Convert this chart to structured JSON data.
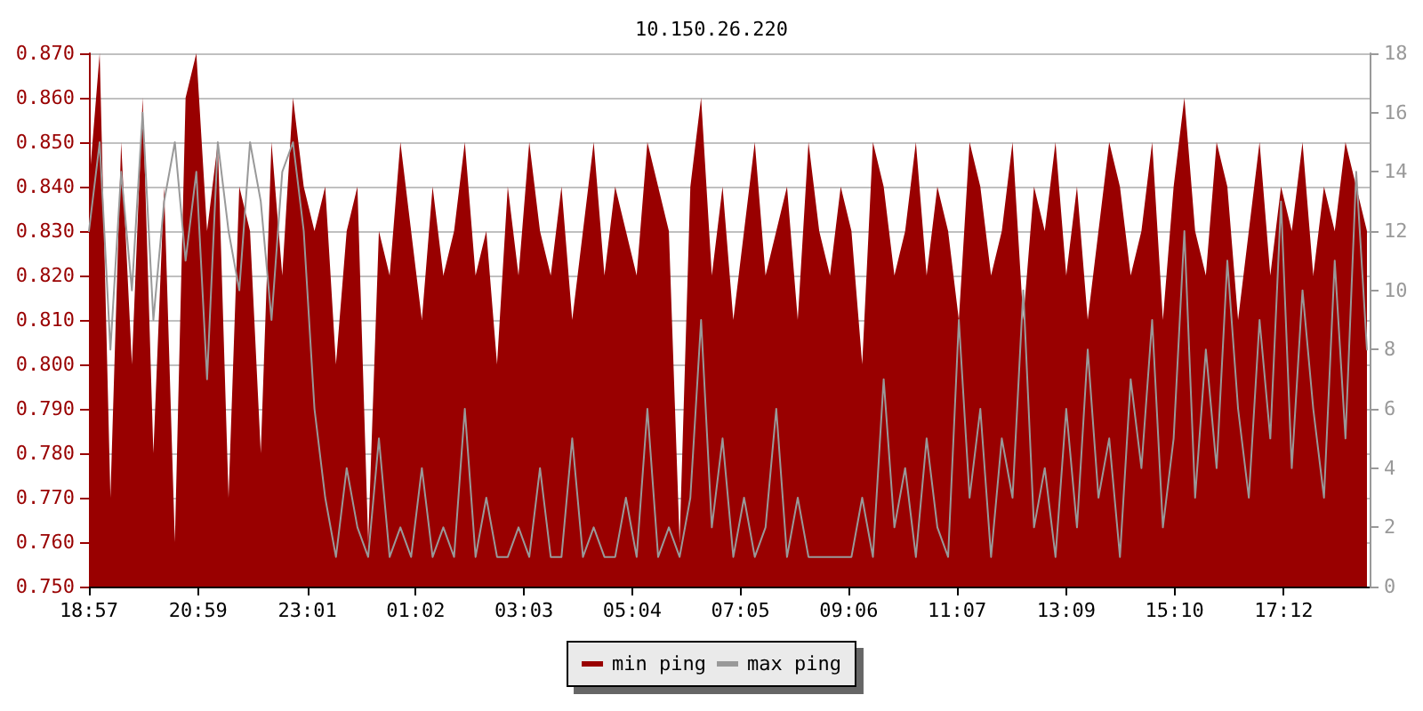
{
  "chart_data": {
    "type": "area",
    "title": "10.150.26.220",
    "legend": "bottom",
    "grid": "y",
    "marker": "none",
    "x": [
      "--01-01T18:57",
      "--01-01T19:09",
      "--01-01T19:21",
      "--01-01T19:33",
      "--01-01T19:45",
      "--01-01T19:57",
      "--01-01T20:09",
      "--01-01T20:21",
      "--01-01T20:33",
      "--01-01T20:45",
      "--01-01T20:57",
      "--01-01T21:09",
      "--01-01T21:21",
      "--01-01T21:33",
      "--01-01T21:45",
      "--01-01T21:57",
      "--01-01T22:09",
      "--01-01T22:21",
      "--01-01T22:33",
      "--01-01T22:45",
      "--01-01T22:57",
      "--01-01T23:09",
      "--01-01T23:21",
      "--01-01T23:33",
      "--01-01T23:45",
      "--01-01T23:57",
      "--01-02T00:09",
      "--01-02T00:21",
      "--01-02T00:33",
      "--01-02T00:45",
      "--01-02T00:57",
      "--01-02T01:09",
      "--01-02T01:21",
      "--01-02T01:33",
      "--01-02T01:45",
      "--01-02T01:57",
      "--01-02T02:09",
      "--01-02T02:21",
      "--01-02T02:33",
      "--01-02T02:45",
      "--01-02T02:57",
      "--01-02T03:09",
      "--01-02T03:21",
      "--01-02T03:33",
      "--01-02T03:45",
      "--01-02T03:57",
      "--01-02T04:09",
      "--01-02T04:21",
      "--01-02T04:33",
      "--01-02T04:45",
      "--01-02T04:57",
      "--01-02T05:09",
      "--01-02T05:21",
      "--01-02T05:33",
      "--01-02T05:45",
      "--01-02T05:57",
      "--01-02T06:09",
      "--01-02T06:21",
      "--01-02T06:33",
      "--01-02T06:45",
      "--01-02T06:57",
      "--01-02T07:09",
      "--01-02T07:21",
      "--01-02T07:33",
      "--01-02T07:45",
      "--01-02T07:57",
      "--01-02T08:09",
      "--01-02T08:21",
      "--01-02T08:33",
      "--01-02T08:45",
      "--01-02T08:57",
      "--01-02T09:09",
      "--01-02T09:21",
      "--01-02T09:33",
      "--01-02T09:45",
      "--01-02T09:57",
      "--01-02T10:09",
      "--01-02T10:21",
      "--01-02T10:33",
      "--01-02T10:45",
      "--01-02T10:57",
      "--01-02T11:09",
      "--01-02T11:21",
      "--01-02T11:33",
      "--01-02T11:45",
      "--01-02T11:57",
      "--01-02T12:09",
      "--01-02T12:21",
      "--01-02T12:33",
      "--01-02T12:45",
      "--01-02T12:57",
      "--01-02T13:09",
      "--01-02T13:21",
      "--01-02T13:33",
      "--01-02T13:45",
      "--01-02T13:57",
      "--01-02T14:09",
      "--01-02T14:21",
      "--01-02T14:33",
      "--01-02T14:45",
      "--01-02T14:57",
      "--01-02T15:09",
      "--01-02T15:21",
      "--01-02T15:33",
      "--01-02T15:45",
      "--01-02T15:57",
      "--01-02T16:09",
      "--01-02T16:21",
      "--01-02T16:33",
      "--01-02T16:45",
      "--01-02T16:57",
      "--01-02T17:09",
      "--01-02T17:21",
      "--01-02T17:33",
      "--01-02T17:45",
      "--01-02T17:57",
      "--01-02T18:09",
      "--01-02T18:21",
      "--01-02T18:33",
      "--01-02T18:45"
    ],
    "xlim": [
      "--01-01T18:57",
      "--01-02T18:48"
    ],
    "xticks": [
      {
        "value": "--01-01T18:57",
        "label": "18:57"
      },
      {
        "value": "--01-01T20:59",
        "label": "20:59"
      },
      {
        "value": "--01-01T23:01",
        "label": "23:01"
      },
      {
        "value": "--01-02T01:02",
        "label": "01:02"
      },
      {
        "value": "--01-02T03:03",
        "label": "03:03"
      },
      {
        "value": "--01-02T05:04",
        "label": "05:04"
      },
      {
        "value": "--01-02T07:05",
        "label": "07:05"
      },
      {
        "value": "--01-02T09:06",
        "label": "09:06"
      },
      {
        "value": "--01-02T11:07",
        "label": "11:07"
      },
      {
        "value": "--01-02T13:09",
        "label": "13:09"
      },
      {
        "value": "--01-02T15:10",
        "label": "15:10"
      },
      {
        "value": "--01-02T17:12",
        "label": "17:12"
      }
    ],
    "ylim": [
      0.75,
      0.87
    ],
    "yticks": [
      {
        "value": 0.75,
        "label": "0.750"
      },
      {
        "value": 0.76,
        "label": "0.760"
      },
      {
        "value": 0.77,
        "label": "0.770"
      },
      {
        "value": 0.78,
        "label": "0.780"
      },
      {
        "value": 0.79,
        "label": "0.790"
      },
      {
        "value": 0.8,
        "label": "0.800"
      },
      {
        "value": 0.81,
        "label": "0.810"
      },
      {
        "value": 0.82,
        "label": "0.820"
      },
      {
        "value": 0.83,
        "label": "0.830"
      },
      {
        "value": 0.84,
        "label": "0.840"
      },
      {
        "value": 0.85,
        "label": "0.850"
      },
      {
        "value": 0.86,
        "label": "0.860"
      },
      {
        "value": 0.87,
        "label": "0.870"
      }
    ],
    "y2lim": [
      0,
      18
    ],
    "y2ticks": [
      0,
      2,
      4,
      6,
      8,
      10,
      12,
      14,
      16,
      18
    ],
    "series": [
      {
        "name": "min ping",
        "color": "#990000",
        "values": [
          0.84,
          0.87,
          0.77,
          0.85,
          0.8,
          0.86,
          0.78,
          0.84,
          0.76,
          0.86,
          0.87,
          0.83,
          0.85,
          0.77,
          0.84,
          0.83,
          0.78,
          0.85,
          0.82,
          0.86,
          0.84,
          0.83,
          0.84,
          0.8,
          0.83,
          0.84,
          0.76,
          0.83,
          0.82,
          0.85,
          0.83,
          0.81,
          0.84,
          0.82,
          0.83,
          0.85,
          0.82,
          0.83,
          0.8,
          0.84,
          0.82,
          0.85,
          0.83,
          0.82,
          0.84,
          0.81,
          0.83,
          0.85,
          0.82,
          0.84,
          0.83,
          0.82,
          0.85,
          0.84,
          0.83,
          0.76,
          0.84,
          0.86,
          0.82,
          0.84,
          0.81,
          0.83,
          0.85,
          0.82,
          0.83,
          0.84,
          0.81,
          0.85,
          0.83,
          0.82,
          0.84,
          0.83,
          0.8,
          0.85,
          0.84,
          0.82,
          0.83,
          0.85,
          0.82,
          0.84,
          0.83,
          0.81,
          0.85,
          0.84,
          0.82,
          0.83,
          0.85,
          0.81,
          0.84,
          0.83,
          0.85,
          0.82,
          0.84,
          0.81,
          0.83,
          0.85,
          0.84,
          0.82,
          0.83,
          0.85,
          0.81,
          0.84,
          0.86,
          0.83,
          0.82,
          0.85,
          0.84,
          0.81,
          0.83,
          0.85,
          0.82,
          0.84,
          0.83,
          0.85,
          0.82,
          0.84,
          0.83,
          0.85,
          0.84,
          0.83
        ]
      },
      {
        "name": "max ping",
        "type": "line",
        "axis": "y2",
        "color": "#999999",
        "values": [
          12,
          15,
          8,
          14,
          10,
          16,
          9,
          13,
          15,
          11,
          14,
          7,
          15,
          12,
          10,
          15,
          13,
          9,
          14,
          15,
          12,
          6,
          3,
          1,
          4,
          2,
          1,
          5,
          1,
          2,
          1,
          4,
          1,
          2,
          1,
          6,
          1,
          3,
          1,
          1,
          2,
          1,
          4,
          1,
          1,
          5,
          1,
          2,
          1,
          1,
          3,
          1,
          6,
          1,
          2,
          1,
          3,
          9,
          2,
          5,
          1,
          3,
          1,
          2,
          6,
          1,
          3,
          1,
          1,
          1,
          1,
          1,
          3,
          1,
          7,
          2,
          4,
          1,
          5,
          2,
          1,
          9,
          3,
          6,
          1,
          5,
          3,
          10,
          2,
          4,
          1,
          6,
          2,
          8,
          3,
          5,
          1,
          7,
          4,
          9,
          2,
          5,
          12,
          3,
          8,
          4,
          11,
          6,
          3,
          9,
          5,
          13,
          4,
          10,
          6,
          3,
          11,
          5,
          14,
          8
        ]
      }
    ]
  }
}
